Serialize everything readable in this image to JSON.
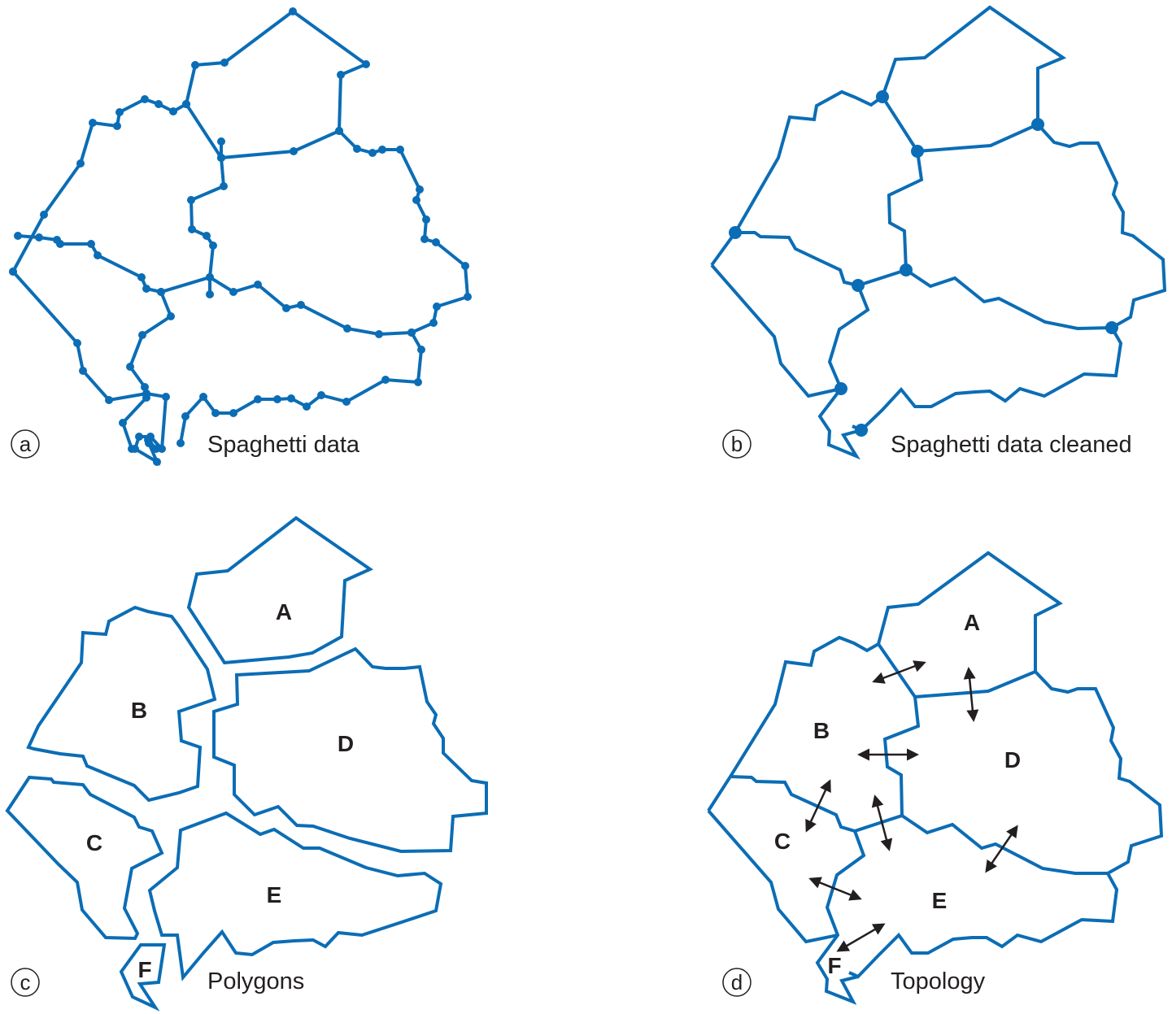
{
  "colors": {
    "line": "#0b6db5",
    "text": "#231f20",
    "background": "#ffffff"
  },
  "panels": [
    {
      "letter": "a",
      "caption": "Spaghetti data"
    },
    {
      "letter": "b",
      "caption": "Spaghetti data cleaned"
    },
    {
      "letter": "c",
      "caption": "Polygons"
    },
    {
      "letter": "d",
      "caption": "Topology"
    }
  ],
  "polygon_labels": {
    "A": "A",
    "B": "B",
    "C": "C",
    "D": "D",
    "E": "E",
    "F": "F"
  },
  "topology_labels": {
    "A": "A",
    "B": "B",
    "C": "C",
    "D": "D",
    "E": "E",
    "F": "F"
  }
}
